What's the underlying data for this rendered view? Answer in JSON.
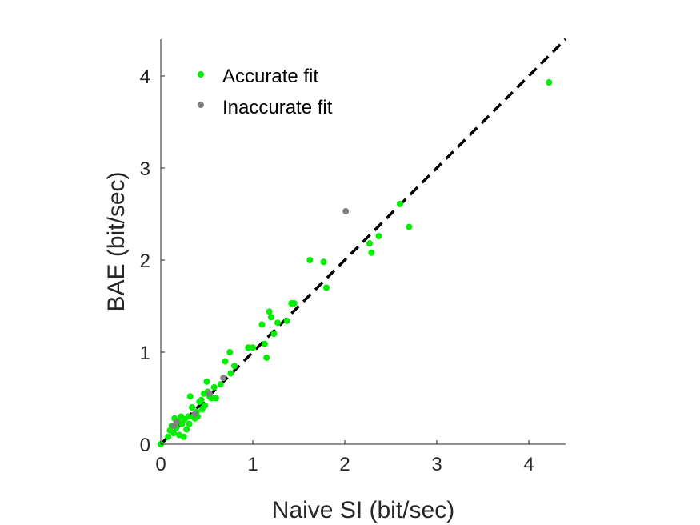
{
  "chart_data": {
    "type": "scatter",
    "title": "",
    "xlabel": "Naive SI (bit/sec)",
    "ylabel": "BAE (bit/sec)",
    "xlim": [
      0,
      4.4
    ],
    "ylim": [
      0,
      4.4
    ],
    "xticks": [
      "0",
      "1",
      "2",
      "3",
      "4"
    ],
    "yticks": [
      "0",
      "1",
      "2",
      "3",
      "4"
    ],
    "grid": false,
    "legend_position": "top-left",
    "reference_line": {
      "style": "dashed",
      "color": "#000000",
      "slope": 1,
      "intercept": 0
    },
    "series": [
      {
        "name": "Accurate fit",
        "color": "#00ee00",
        "points": [
          [
            0,
            0
          ],
          [
            0.08,
            0.08
          ],
          [
            0.1,
            0.15
          ],
          [
            0.12,
            0.2
          ],
          [
            0.14,
            0.12
          ],
          [
            0.15,
            0.28
          ],
          [
            0.17,
            0.18
          ],
          [
            0.19,
            0.25
          ],
          [
            0.2,
            0.1
          ],
          [
            0.22,
            0.3
          ],
          [
            0.23,
            0.22
          ],
          [
            0.25,
            0.08
          ],
          [
            0.26,
            0.27
          ],
          [
            0.28,
            0.16
          ],
          [
            0.3,
            0.3
          ],
          [
            0.31,
            0.22
          ],
          [
            0.32,
            0.52
          ],
          [
            0.34,
            0.4
          ],
          [
            0.35,
            0.3
          ],
          [
            0.37,
            0.28
          ],
          [
            0.39,
            0.35
          ],
          [
            0.4,
            0.3
          ],
          [
            0.42,
            0.46
          ],
          [
            0.44,
            0.48
          ],
          [
            0.45,
            0.38
          ],
          [
            0.47,
            0.55
          ],
          [
            0.48,
            0.42
          ],
          [
            0.5,
            0.68
          ],
          [
            0.51,
            0.57
          ],
          [
            0.53,
            0.52
          ],
          [
            0.55,
            0.5
          ],
          [
            0.58,
            0.62
          ],
          [
            0.6,
            0.5
          ],
          [
            0.65,
            0.65
          ],
          [
            0.7,
            0.9
          ],
          [
            0.75,
            1.0
          ],
          [
            0.76,
            0.77
          ],
          [
            0.8,
            0.85
          ],
          [
            0.95,
            1.05
          ],
          [
            1.0,
            1.05
          ],
          [
            1.1,
            1.3
          ],
          [
            1.13,
            1.09
          ],
          [
            1.15,
            0.94
          ],
          [
            1.18,
            1.44
          ],
          [
            1.2,
            1.38
          ],
          [
            1.23,
            1.2
          ],
          [
            1.27,
            1.32
          ],
          [
            1.37,
            1.34
          ],
          [
            1.42,
            1.53
          ],
          [
            1.45,
            1.53
          ],
          [
            1.62,
            2.0
          ],
          [
            1.77,
            1.98
          ],
          [
            1.8,
            1.7
          ],
          [
            2.27,
            2.18
          ],
          [
            2.29,
            2.08
          ],
          [
            2.37,
            2.26
          ],
          [
            2.6,
            2.61
          ],
          [
            2.7,
            2.36
          ],
          [
            4.22,
            3.93
          ]
        ]
      },
      {
        "name": "Inaccurate fit",
        "color": "#808080",
        "points": [
          [
            0.14,
            0.2
          ],
          [
            0.17,
            0.24
          ],
          [
            0.37,
            0.33
          ],
          [
            0.53,
            0.55
          ],
          [
            0.68,
            0.72
          ],
          [
            2.01,
            2.53
          ]
        ]
      }
    ]
  }
}
